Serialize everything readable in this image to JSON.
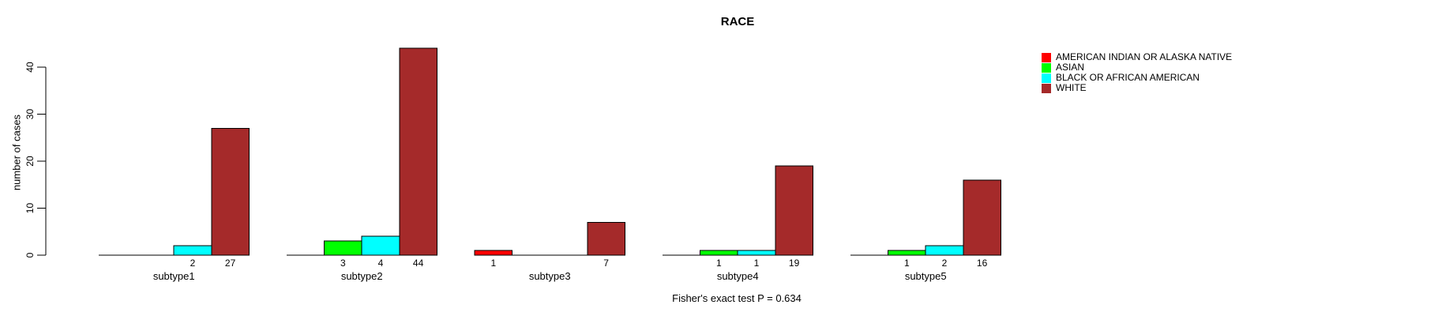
{
  "chart_data": {
    "type": "bar",
    "title": "RACE",
    "ylabel": "number of cases",
    "footnote": "Fisher's exact test P = 0.634",
    "categories": [
      "subtype1",
      "subtype2",
      "subtype3",
      "subtype4",
      "subtype5"
    ],
    "series": [
      {
        "name": "AMERICAN INDIAN OR ALASKA NATIVE",
        "color": "#FF0000",
        "values": [
          0,
          0,
          1,
          0,
          0
        ]
      },
      {
        "name": "ASIAN",
        "color": "#00FF00",
        "values": [
          0,
          3,
          0,
          1,
          1
        ]
      },
      {
        "name": "BLACK OR AFRICAN AMERICAN",
        "color": "#00FFFF",
        "values": [
          2,
          4,
          0,
          1,
          2
        ]
      },
      {
        "name": "WHITE",
        "color": "#A52A2A",
        "values": [
          27,
          44,
          7,
          19,
          16
        ]
      }
    ],
    "yticks": [
      0,
      10,
      20,
      30,
      40
    ],
    "ylim": [
      0,
      44
    ],
    "grid": false,
    "legend_position": "top-right",
    "bar_value_labels_shown": "only for nonzero bars, printed below baseline",
    "axis_color": "#000000",
    "bar_border_color": "#000000",
    "background_color": "#FFFFFF"
  }
}
